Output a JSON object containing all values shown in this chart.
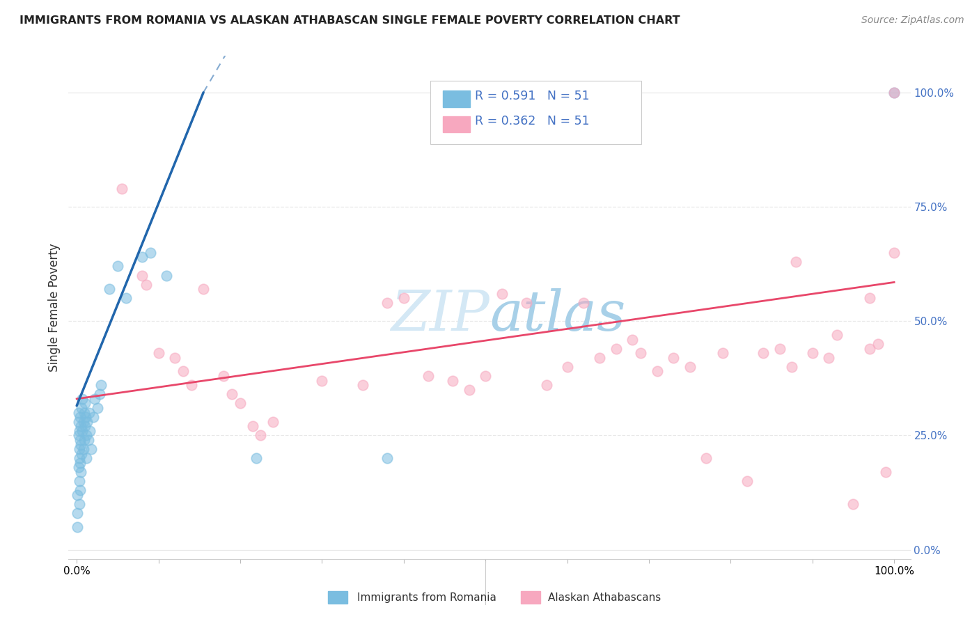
{
  "title": "IMMIGRANTS FROM ROMANIA VS ALASKAN ATHABASCAN SINGLE FEMALE POVERTY CORRELATION CHART",
  "source": "Source: ZipAtlas.com",
  "ylabel": "Single Female Poverty",
  "legend_blue_r": "R = 0.591",
  "legend_blue_n": "N = 51",
  "legend_pink_r": "R = 0.362",
  "legend_pink_n": "N = 51",
  "legend_label_blue": "Immigrants from Romania",
  "legend_label_pink": "Alaskan Athabascans",
  "blue_scatter_color": "#7abde0",
  "pink_scatter_color": "#f7a8bf",
  "blue_line_color": "#2166ac",
  "pink_line_color": "#e8476a",
  "blue_line_solid": [
    [
      0.0,
      0.315
    ],
    [
      0.155,
      1.0
    ]
  ],
  "blue_line_dashed": [
    [
      0.155,
      1.0
    ],
    [
      0.27,
      1.35
    ]
  ],
  "pink_line": [
    [
      0.0,
      0.33
    ],
    [
      1.0,
      0.585
    ]
  ],
  "grid_color": "#e8e8e8",
  "right_tick_color": "#4472c4",
  "watermark_color": "#d4e8f5",
  "blue_x": [
    0.001,
    0.001,
    0.001,
    0.002,
    0.002,
    0.002,
    0.002,
    0.003,
    0.003,
    0.003,
    0.003,
    0.003,
    0.004,
    0.004,
    0.004,
    0.004,
    0.005,
    0.005,
    0.005,
    0.006,
    0.006,
    0.007,
    0.007,
    0.008,
    0.008,
    0.009,
    0.009,
    0.01,
    0.01,
    0.011,
    0.012,
    0.012,
    0.013,
    0.014,
    0.015,
    0.016,
    0.018,
    0.02,
    0.022,
    0.025,
    0.028,
    0.03,
    0.04,
    0.05,
    0.06,
    0.08,
    0.09,
    0.11,
    0.22,
    0.38,
    1.0
  ],
  "blue_y": [
    0.08,
    0.05,
    0.12,
    0.28,
    0.3,
    0.25,
    0.18,
    0.22,
    0.26,
    0.2,
    0.15,
    0.1,
    0.29,
    0.24,
    0.19,
    0.13,
    0.27,
    0.23,
    0.17,
    0.31,
    0.21,
    0.33,
    0.26,
    0.28,
    0.22,
    0.3,
    0.24,
    0.32,
    0.27,
    0.29,
    0.25,
    0.2,
    0.28,
    0.24,
    0.3,
    0.26,
    0.22,
    0.29,
    0.33,
    0.31,
    0.34,
    0.36,
    0.57,
    0.62,
    0.55,
    0.64,
    0.65,
    0.6,
    0.2,
    0.2,
    1.0
  ],
  "pink_x": [
    0.055,
    0.08,
    0.085,
    0.1,
    0.12,
    0.13,
    0.14,
    0.155,
    0.18,
    0.19,
    0.2,
    0.215,
    0.225,
    0.24,
    0.3,
    0.35,
    0.38,
    0.4,
    0.43,
    0.46,
    0.48,
    0.5,
    0.52,
    0.55,
    0.575,
    0.6,
    0.62,
    0.64,
    0.66,
    0.68,
    0.69,
    0.71,
    0.73,
    0.75,
    0.77,
    0.79,
    0.82,
    0.84,
    0.86,
    0.875,
    0.88,
    0.9,
    0.92,
    0.93,
    0.95,
    0.97,
    0.97,
    0.98,
    0.99,
    1.0,
    1.0
  ],
  "pink_y": [
    0.79,
    0.6,
    0.58,
    0.43,
    0.42,
    0.39,
    0.36,
    0.57,
    0.38,
    0.34,
    0.32,
    0.27,
    0.25,
    0.28,
    0.37,
    0.36,
    0.54,
    0.55,
    0.38,
    0.37,
    0.35,
    0.38,
    0.56,
    0.54,
    0.36,
    0.4,
    0.54,
    0.42,
    0.44,
    0.46,
    0.43,
    0.39,
    0.42,
    0.4,
    0.2,
    0.43,
    0.15,
    0.43,
    0.44,
    0.4,
    0.63,
    0.43,
    0.42,
    0.47,
    0.1,
    0.55,
    0.44,
    0.45,
    0.17,
    0.65,
    1.0
  ],
  "xlim": [
    -0.01,
    1.02
  ],
  "ylim": [
    -0.02,
    1.08
  ],
  "figsize": [
    14.06,
    8.92
  ],
  "dpi": 100
}
